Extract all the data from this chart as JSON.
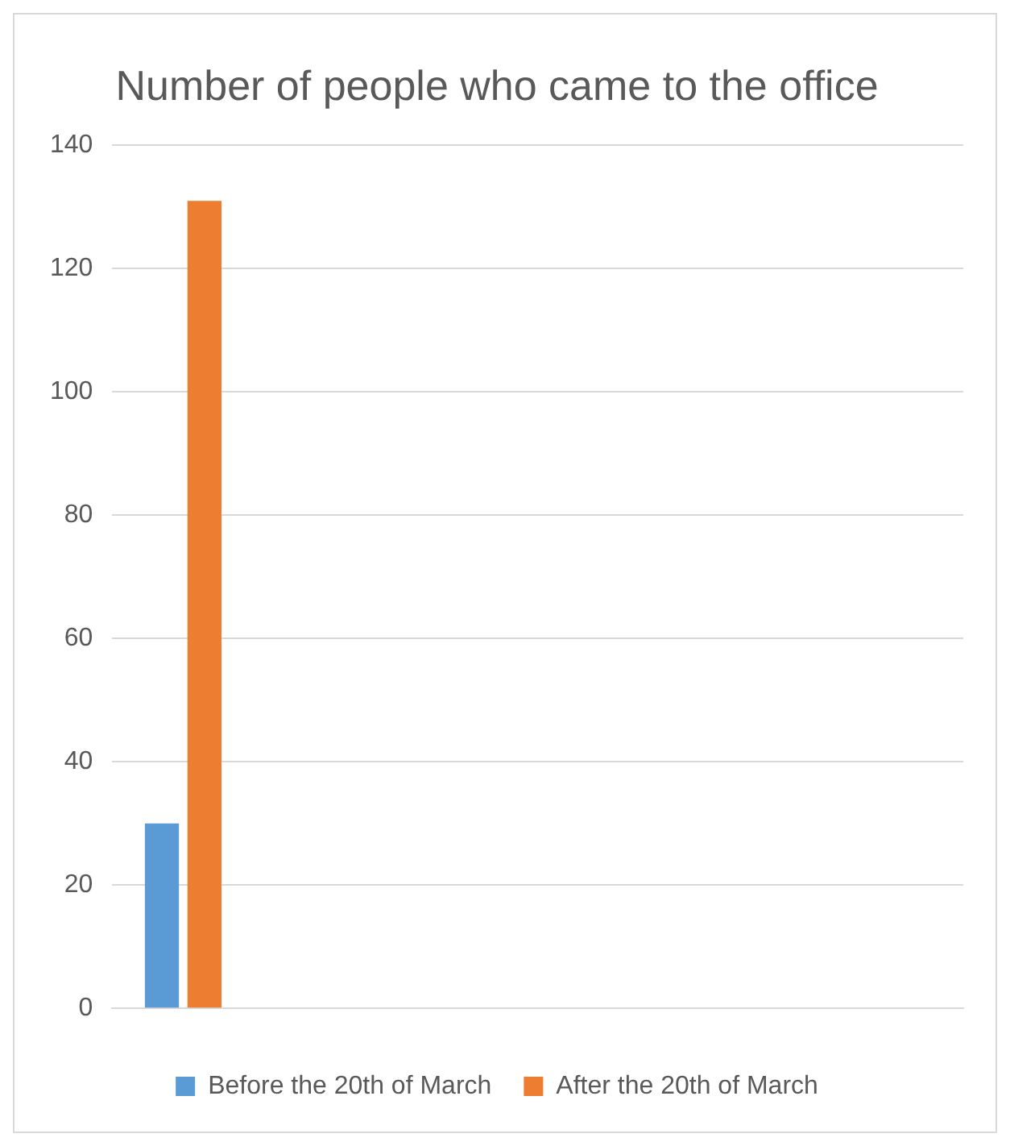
{
  "chart_data": {
    "type": "bar",
    "title": "Number of people who came to the office",
    "categories": [
      null,
      null,
      null,
      null,
      null,
      null
    ],
    "series": [
      {
        "name": "Before the 20th of March",
        "color": "#5b9bd5",
        "values": [
          30,
          null,
          null,
          null,
          null,
          null
        ]
      },
      {
        "name": "After the 20th of March",
        "color": "#ed7d31",
        "values": [
          131,
          null,
          null,
          null,
          null,
          null
        ]
      }
    ],
    "ylim": [
      0,
      140
    ],
    "yticks": [
      0,
      20,
      40,
      60,
      80,
      100,
      120,
      140
    ],
    "grid": "y",
    "legend": "bottom"
  }
}
